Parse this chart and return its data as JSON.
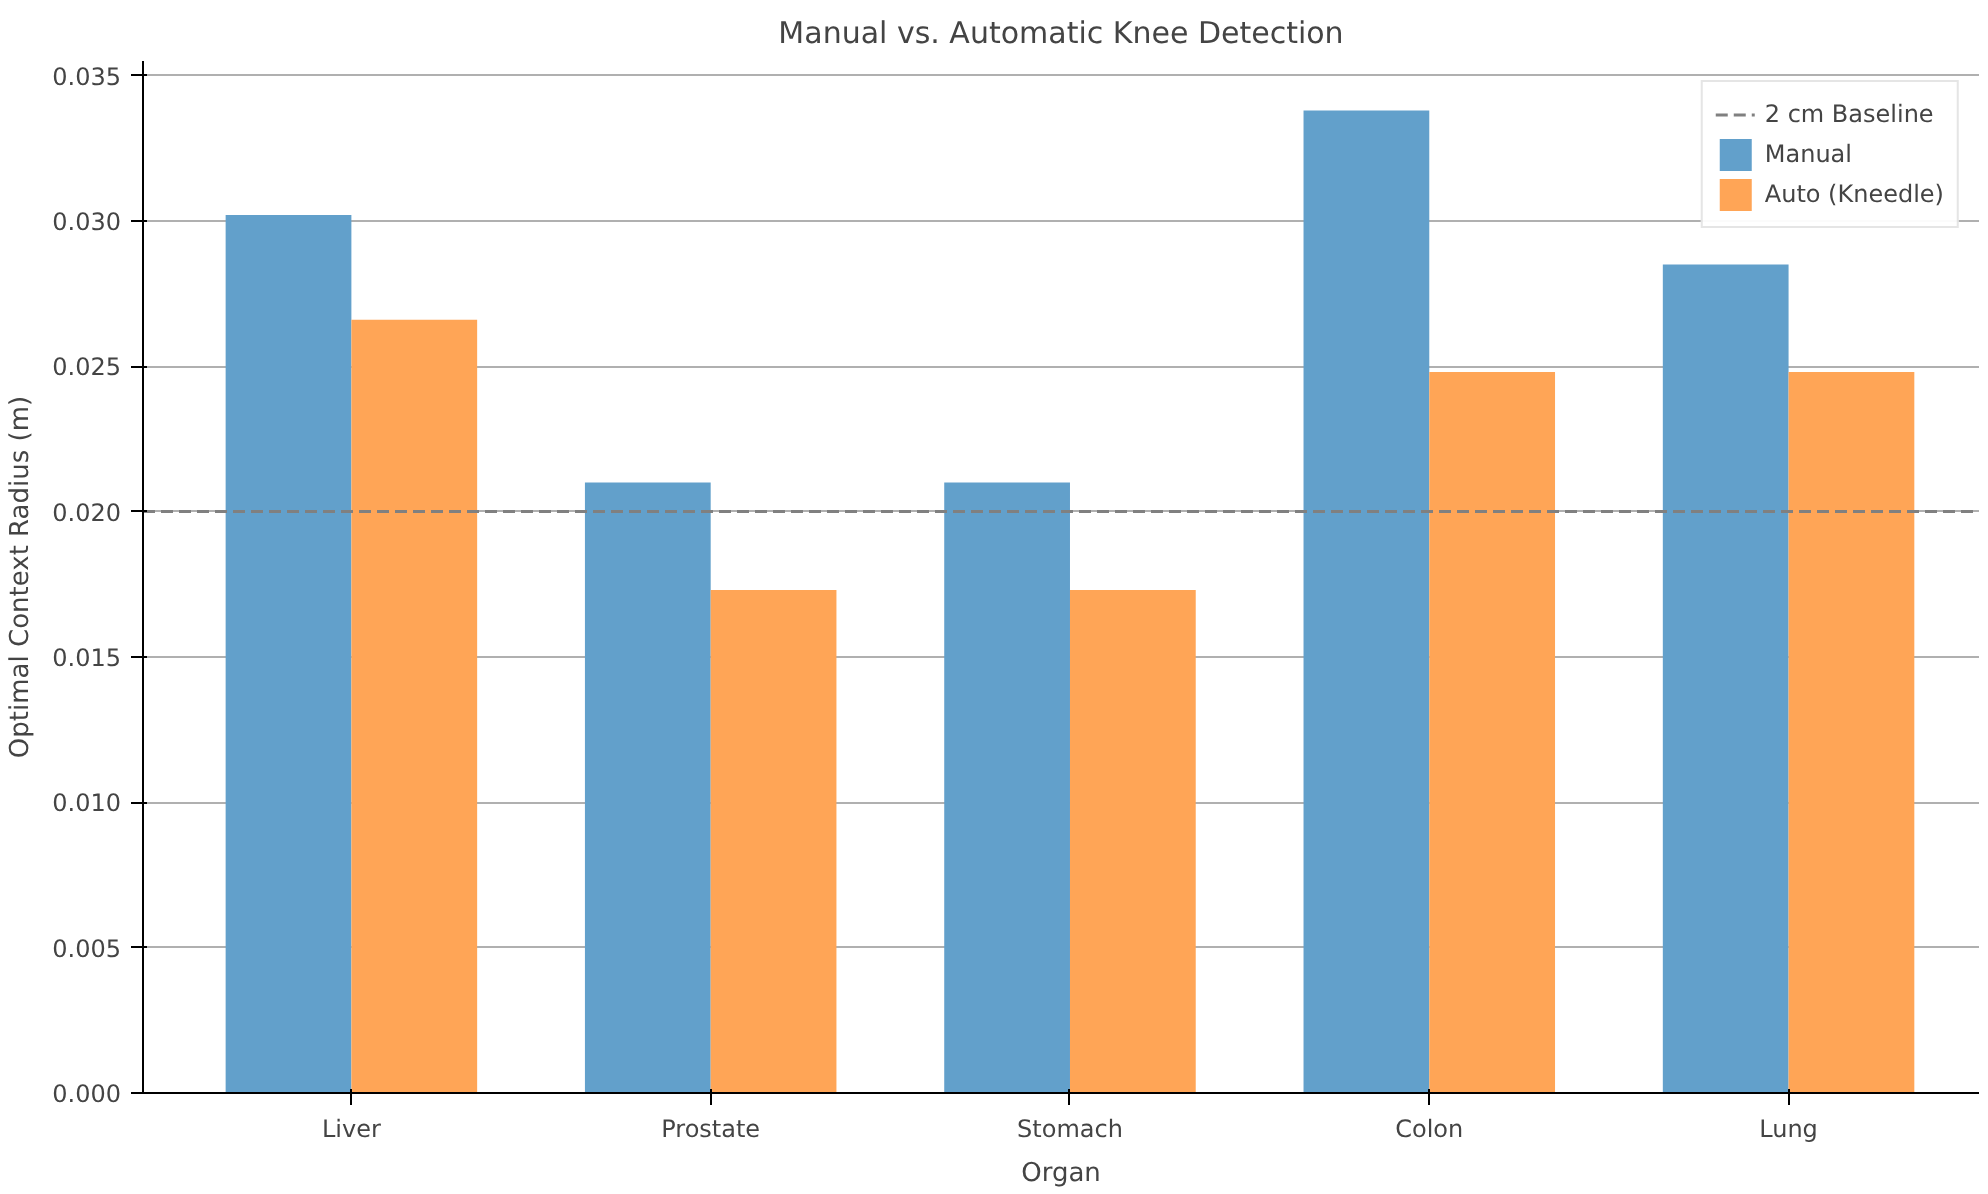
{
  "chart_data": {
    "type": "bar",
    "title": "Manual vs. Automatic Knee Detection",
    "xlabel": "Organ",
    "ylabel": "Optimal Context Radius (m)",
    "categories": [
      "Liver",
      "Prostate",
      "Stomach",
      "Colon",
      "Lung"
    ],
    "series": [
      {
        "name": "Manual",
        "color": "#62a0cb",
        "values": [
          0.0302,
          0.021,
          0.021,
          0.0338,
          0.0285
        ]
      },
      {
        "name": "Auto (Kneedle)",
        "color": "#ffa556",
        "values": [
          0.0266,
          0.0173,
          0.0173,
          0.0248,
          0.0248
        ]
      }
    ],
    "ylim": [
      0,
      0.0355
    ],
    "yticks": [
      {
        "value": 0,
        "label": "0.000"
      },
      {
        "value": 0.005,
        "label": "0.005"
      },
      {
        "value": 0.01,
        "label": "0.010"
      },
      {
        "value": 0.015,
        "label": "0.015"
      },
      {
        "value": 0.02,
        "label": "0.020"
      },
      {
        "value": 0.025,
        "label": "0.025"
      },
      {
        "value": 0.03,
        "label": "0.030"
      },
      {
        "value": 0.035,
        "label": "0.035"
      }
    ],
    "ref_lines": [
      {
        "axis": "y",
        "value": 0.02,
        "label": "2 cm Baseline",
        "color": "#808080",
        "line_style": "dashed"
      }
    ],
    "grid": "y",
    "legend": "top right"
  }
}
